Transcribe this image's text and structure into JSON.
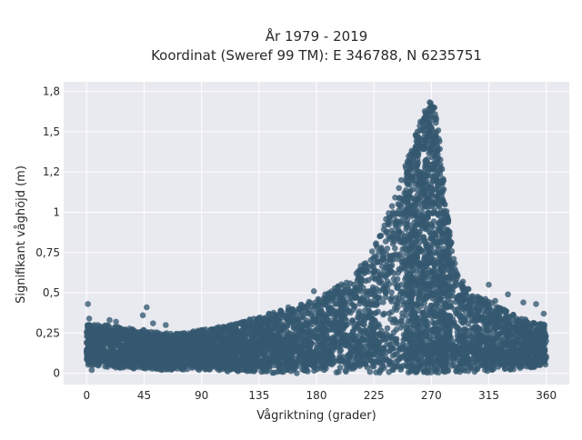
{
  "chart_data": {
    "type": "scatter",
    "title": "År 1979 - 2019",
    "subtitle": "Koordinat (Sweref 99 TM): E 346788, N 6235751",
    "xlabel": "Vågriktning (grader)",
    "ylabel": "Signifikant våghöjd (m)",
    "xlim": [
      -18,
      378
    ],
    "ylim": [
      -0.07,
      1.81
    ],
    "x_ticks": [
      {
        "value": 0,
        "label": "0"
      },
      {
        "value": 45,
        "label": "45"
      },
      {
        "value": 90,
        "label": "90"
      },
      {
        "value": 135,
        "label": "135"
      },
      {
        "value": 180,
        "label": "180"
      },
      {
        "value": 225,
        "label": "225"
      },
      {
        "value": 270,
        "label": "270"
      },
      {
        "value": 315,
        "label": "315"
      },
      {
        "value": 360,
        "label": "360"
      }
    ],
    "y_ticks": [
      {
        "value": 0,
        "label": "0"
      },
      {
        "value": 0.25,
        "label": "0,25"
      },
      {
        "value": 0.5,
        "label": "0,5"
      },
      {
        "value": 0.75,
        "label": "0,75"
      },
      {
        "value": 1,
        "label": "1"
      },
      {
        "value": 1.25,
        "label": "1,2"
      },
      {
        "value": 1.5,
        "label": "1,5"
      },
      {
        "value": 1.75,
        "label": "1,8"
      }
    ],
    "grid": true,
    "legend": "none",
    "colors": {
      "marker": "#34586f",
      "plot_background": "#e9e9f0",
      "grid": "#ffffff"
    },
    "envelope": {
      "x": [
        0,
        15,
        30,
        45,
        60,
        75,
        90,
        105,
        120,
        135,
        150,
        165,
        180,
        195,
        210,
        220,
        230,
        240,
        248,
        255,
        260,
        265,
        268,
        270,
        272,
        275,
        280,
        285,
        290,
        300,
        315,
        330,
        345,
        360
      ],
      "upper": [
        0.3,
        0.3,
        0.28,
        0.27,
        0.25,
        0.25,
        0.27,
        0.29,
        0.32,
        0.35,
        0.39,
        0.42,
        0.46,
        0.53,
        0.62,
        0.72,
        0.88,
        1.06,
        1.25,
        1.42,
        1.55,
        1.64,
        1.68,
        1.69,
        1.68,
        1.55,
        1.15,
        0.85,
        0.65,
        0.52,
        0.45,
        0.38,
        0.33,
        0.3
      ],
      "lower": [
        0.05,
        0.04,
        0.03,
        0.03,
        0.02,
        0.02,
        0.02,
        0.01,
        0.01,
        0.01,
        0.0,
        0.0,
        0.0,
        0.0,
        0.0,
        0.0,
        0.0,
        0.0,
        0.0,
        0.0,
        0.0,
        0.0,
        0.0,
        0.0,
        0.0,
        0.0,
        0.0,
        0.0,
        0.0,
        0.0,
        0.01,
        0.02,
        0.03,
        0.05
      ]
    },
    "outliers": [
      {
        "x": 1,
        "y": 0.43
      },
      {
        "x": 2,
        "y": 0.34
      },
      {
        "x": 18,
        "y": 0.33
      },
      {
        "x": 23,
        "y": 0.32
      },
      {
        "x": 44,
        "y": 0.36
      },
      {
        "x": 47,
        "y": 0.41
      },
      {
        "x": 52,
        "y": 0.31
      },
      {
        "x": 62,
        "y": 0.3
      },
      {
        "x": 113,
        "y": 0.28
      },
      {
        "x": 158,
        "y": 0.41
      },
      {
        "x": 178,
        "y": 0.51
      },
      {
        "x": 315,
        "y": 0.55
      },
      {
        "x": 320,
        "y": 0.45
      },
      {
        "x": 330,
        "y": 0.49
      },
      {
        "x": 342,
        "y": 0.44
      },
      {
        "x": 352,
        "y": 0.43
      },
      {
        "x": 358,
        "y": 0.37
      },
      {
        "x": 4,
        "y": 0.02
      },
      {
        "x": 32,
        "y": 0.05
      },
      {
        "x": 64,
        "y": 0.03
      }
    ]
  }
}
